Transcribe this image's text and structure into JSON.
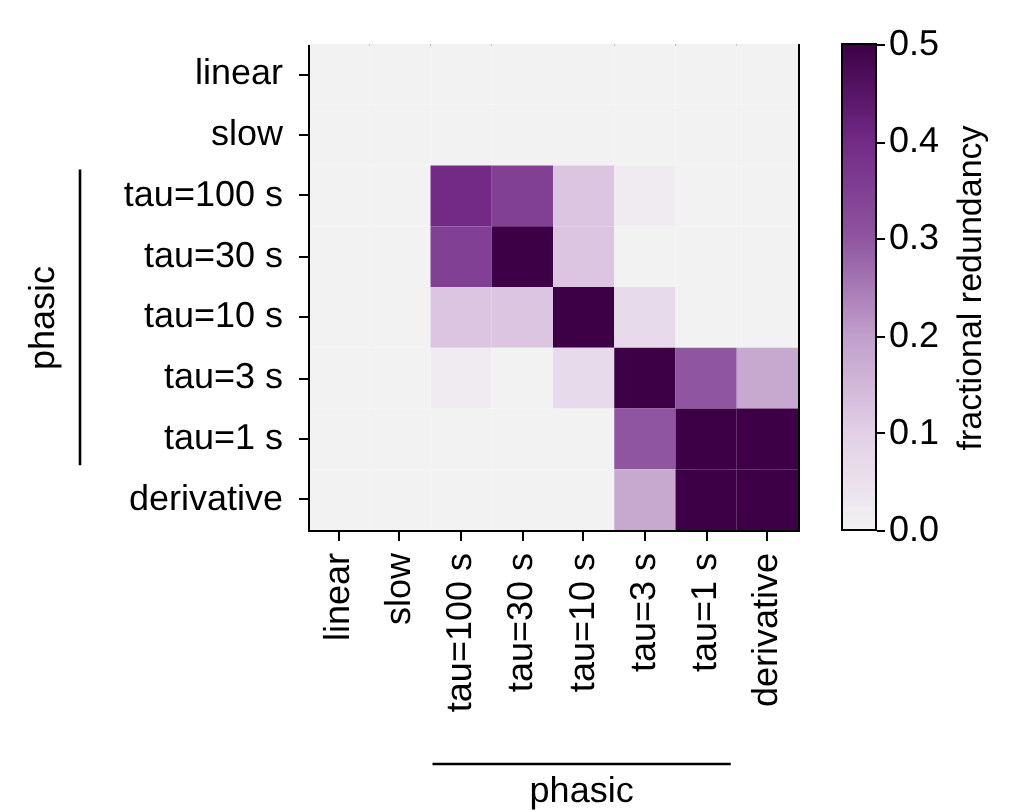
{
  "chart_data": {
    "type": "heatmap",
    "categories": [
      "linear",
      "slow",
      "tau=100 s",
      "tau=30 s",
      "tau=10 s",
      "tau=3 s",
      "tau=1 s",
      "derivative"
    ],
    "y_categories": [
      "linear",
      "slow",
      "tau=100 s",
      "tau=30 s",
      "tau=10 s",
      "tau=3 s",
      "tau=1 s",
      "derivative"
    ],
    "cells": [
      [
        0,
        0,
        0,
        0,
        0,
        0,
        0,
        0
      ],
      [
        0,
        0,
        0,
        0,
        0,
        0,
        0,
        0
      ],
      [
        0,
        0,
        0.4,
        0.35,
        0.12,
        0.02,
        0,
        0
      ],
      [
        0,
        0,
        0.35,
        0.5,
        0.12,
        0,
        0,
        0
      ],
      [
        0,
        0,
        0.12,
        0.12,
        0.5,
        0.07,
        0,
        0
      ],
      [
        0,
        0,
        0.02,
        0,
        0.07,
        0.5,
        0.3,
        0.18
      ],
      [
        0,
        0,
        0,
        0,
        0,
        0.3,
        0.5,
        0.5
      ],
      [
        0,
        0,
        0,
        0,
        0,
        0.18,
        0.5,
        0.5
      ]
    ],
    "clim": [
      0,
      0.5
    ],
    "cticks": [
      {
        "value": 0,
        "label": "0.0"
      },
      0.1,
      0.2,
      0.3,
      0.4,
      0.5
    ],
    "clabel": "fractional redundancy",
    "annotations": [
      "phasic",
      "phasic"
    ]
  }
}
